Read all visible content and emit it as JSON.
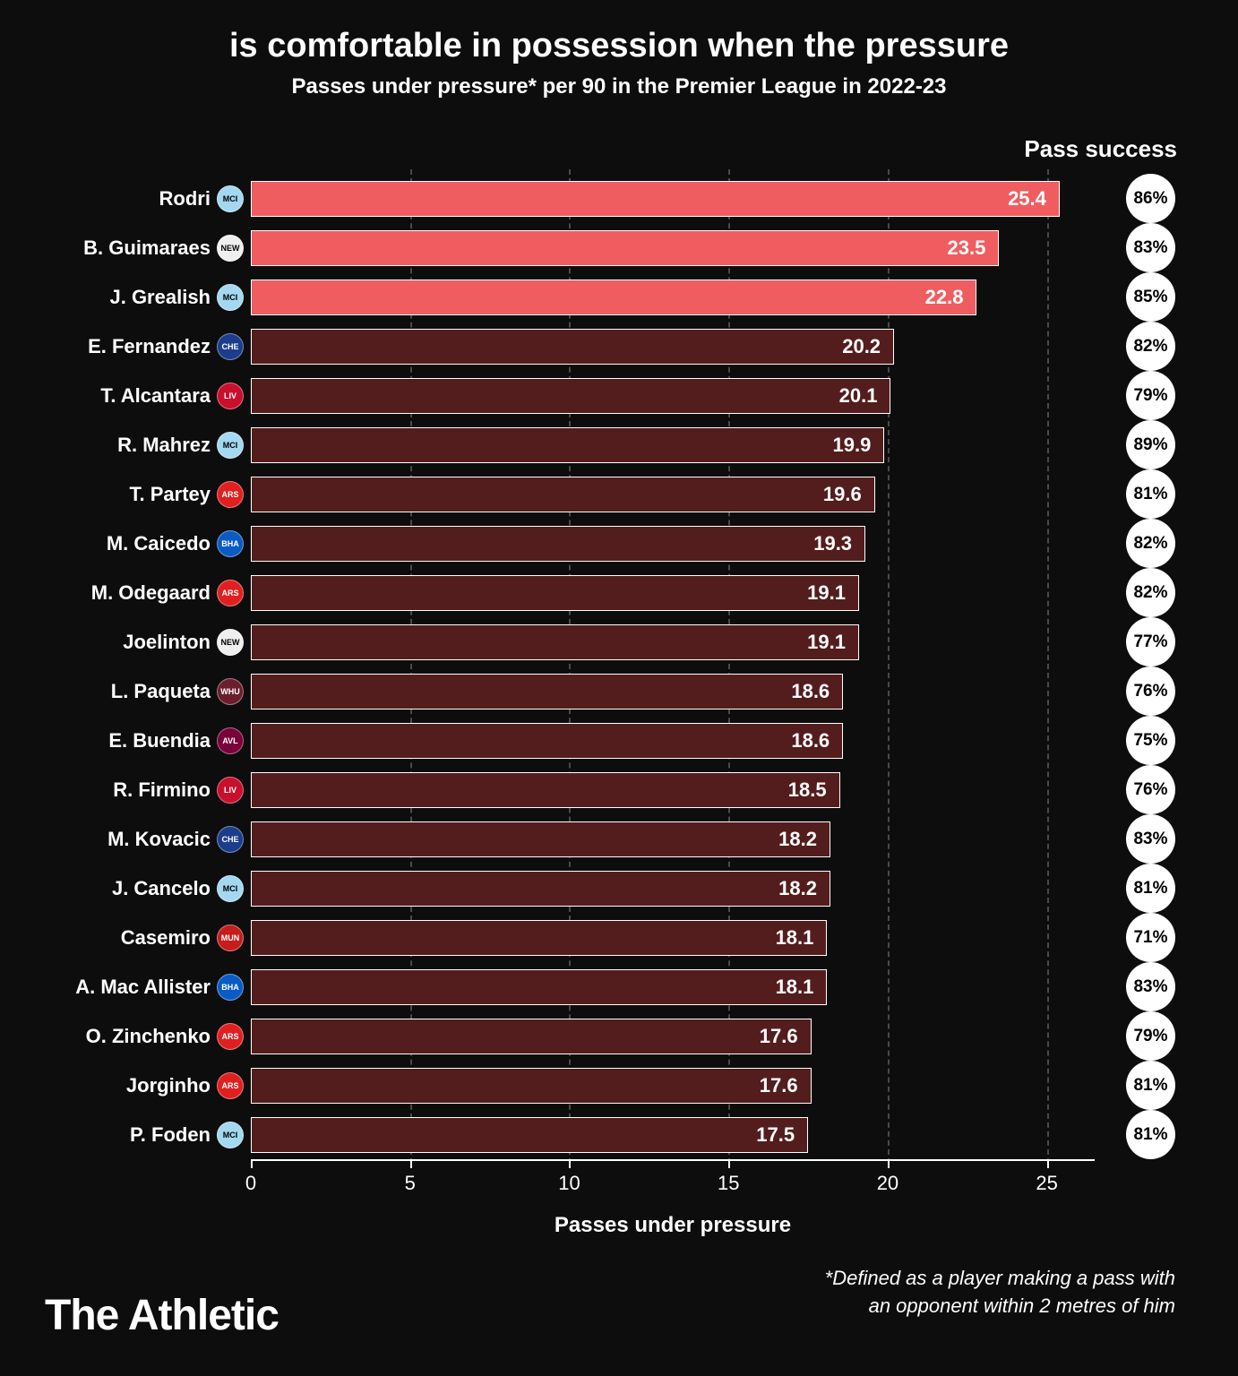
{
  "title": "is comfortable in possession when the pressure",
  "subtitle": "Passes under pressure* per 90 in the Premier League in 2022-23",
  "pass_success_header": "Pass success",
  "x_axis_label": "Passes under pressure",
  "footnote_line1": "*Defined as a player making a pass with",
  "footnote_line2": "an opponent within 2 metres of him",
  "brand": "The Athletic",
  "chart": {
    "type": "bar",
    "xlim_max": 26.5,
    "ticks": [
      0,
      5,
      10,
      15,
      20,
      25
    ],
    "background_color": "#0d0d0d",
    "grid_color": "#4a4a4a",
    "bar_border_color": "#ffffff",
    "badge_bg": "#ffffff",
    "badge_text": "#000000",
    "title_fontsize": 38,
    "subtitle_fontsize": 24,
    "label_fontsize": 22,
    "bar_highlight_color": "#ef5d60",
    "bar_default_color": "#541d1d",
    "players": [
      {
        "name": "Rodri",
        "value": 25.4,
        "success": "86%",
        "highlight": true,
        "crest_bg": "#a3d8f0",
        "crest_txt": "MCI"
      },
      {
        "name": "B. Guimaraes",
        "value": 23.5,
        "success": "83%",
        "highlight": true,
        "crest_bg": "#efefef",
        "crest_txt": "NEW"
      },
      {
        "name": "J. Grealish",
        "value": 22.8,
        "success": "85%",
        "highlight": true,
        "crest_bg": "#a3d8f0",
        "crest_txt": "MCI"
      },
      {
        "name": "E. Fernandez",
        "value": 20.2,
        "success": "82%",
        "highlight": false,
        "crest_bg": "#1c3c8c",
        "crest_txt": "CHE"
      },
      {
        "name": "T. Alcantara",
        "value": 20.1,
        "success": "79%",
        "highlight": false,
        "crest_bg": "#c8102e",
        "crest_txt": "LIV"
      },
      {
        "name": "R. Mahrez",
        "value": 19.9,
        "success": "89%",
        "highlight": false,
        "crest_bg": "#a3d8f0",
        "crest_txt": "MCI"
      },
      {
        "name": "T. Partey",
        "value": 19.6,
        "success": "81%",
        "highlight": false,
        "crest_bg": "#e02020",
        "crest_txt": "ARS"
      },
      {
        "name": "M. Caicedo",
        "value": 19.3,
        "success": "82%",
        "highlight": false,
        "crest_bg": "#0a5bc4",
        "crest_txt": "BHA"
      },
      {
        "name": "M. Odegaard",
        "value": 19.1,
        "success": "82%",
        "highlight": false,
        "crest_bg": "#e02020",
        "crest_txt": "ARS"
      },
      {
        "name": "Joelinton",
        "value": 19.1,
        "success": "77%",
        "highlight": false,
        "crest_bg": "#efefef",
        "crest_txt": "NEW"
      },
      {
        "name": "L. Paqueta",
        "value": 18.6,
        "success": "76%",
        "highlight": false,
        "crest_bg": "#6b1f2d",
        "crest_txt": "WHU"
      },
      {
        "name": "E. Buendia",
        "value": 18.6,
        "success": "75%",
        "highlight": false,
        "crest_bg": "#7a003c",
        "crest_txt": "AVL"
      },
      {
        "name": "R. Firmino",
        "value": 18.5,
        "success": "76%",
        "highlight": false,
        "crest_bg": "#c8102e",
        "crest_txt": "LIV"
      },
      {
        "name": "M. Kovacic",
        "value": 18.2,
        "success": "83%",
        "highlight": false,
        "crest_bg": "#1c3c8c",
        "crest_txt": "CHE"
      },
      {
        "name": "J. Cancelo",
        "value": 18.2,
        "success": "81%",
        "highlight": false,
        "crest_bg": "#a3d8f0",
        "crest_txt": "MCI"
      },
      {
        "name": "Casemiro",
        "value": 18.1,
        "success": "71%",
        "highlight": false,
        "crest_bg": "#c51c1c",
        "crest_txt": "MUN"
      },
      {
        "name": "A. Mac Allister",
        "value": 18.1,
        "success": "83%",
        "highlight": false,
        "crest_bg": "#0a5bc4",
        "crest_txt": "BHA"
      },
      {
        "name": "O. Zinchenko",
        "value": 17.6,
        "success": "79%",
        "highlight": false,
        "crest_bg": "#e02020",
        "crest_txt": "ARS"
      },
      {
        "name": "Jorginho",
        "value": 17.6,
        "success": "81%",
        "highlight": false,
        "crest_bg": "#e02020",
        "crest_txt": "ARS"
      },
      {
        "name": "P. Foden",
        "value": 17.5,
        "success": "81%",
        "highlight": false,
        "crest_bg": "#a3d8f0",
        "crest_txt": "MCI"
      }
    ]
  }
}
